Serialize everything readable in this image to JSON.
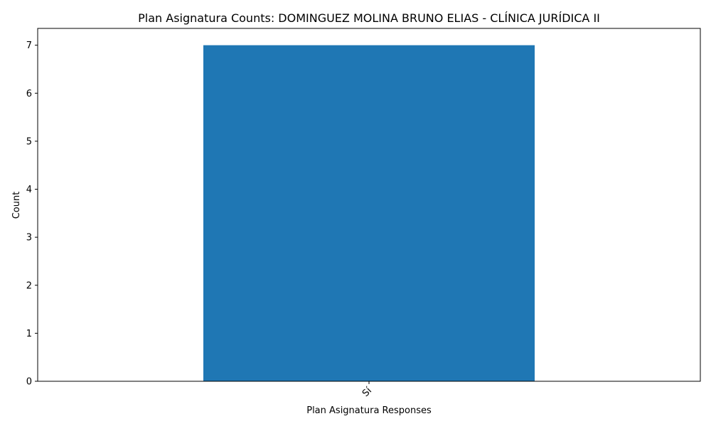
{
  "chart_data": {
    "type": "bar",
    "title": "Plan Asignatura Counts: DOMINGUEZ MOLINA BRUNO ELIAS - CLÍNICA JURÍDICA II",
    "xlabel": "Plan Asignatura Responses",
    "ylabel": "Count",
    "categories": [
      "Sí"
    ],
    "values": [
      7
    ],
    "ylim": [
      0,
      7.35
    ],
    "yticks": [
      0,
      1,
      2,
      3,
      4,
      5,
      6,
      7
    ],
    "bar_color": "#1f77b4",
    "grid": false,
    "legend": "none"
  }
}
